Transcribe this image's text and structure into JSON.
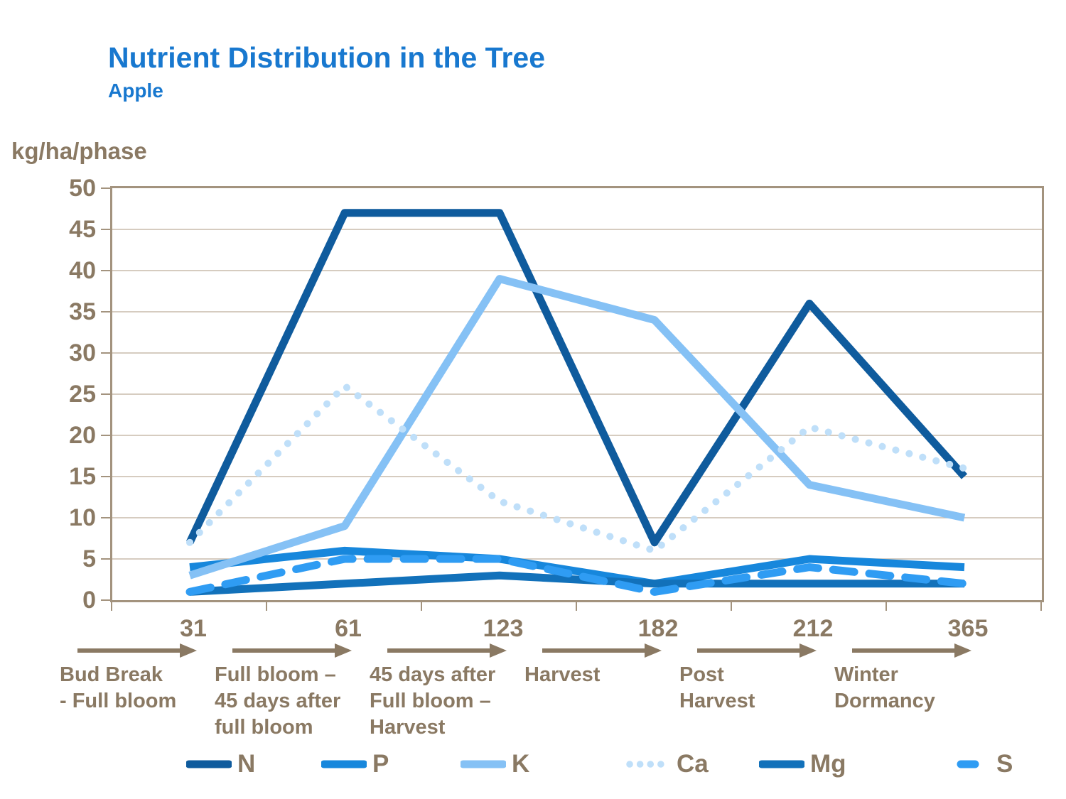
{
  "header": {
    "title": "Nutrient Distribution in the Tree",
    "subtitle": "Apple"
  },
  "colors": {
    "title_blue": "#1878CF",
    "axis_text_brown": "#8A7963",
    "grid": "#C8BCAC",
    "border": "#A3937E",
    "background": "#FFFFFF"
  },
  "chart_data": {
    "type": "line",
    "title": "Nutrient Distribution in the Tree",
    "subtitle": "Apple",
    "ylabel": "kg/ha/phase",
    "xlabel": "",
    "ylim": [
      0,
      50
    ],
    "ytick_step": 5,
    "yticks": [
      "0",
      "5",
      "10",
      "15",
      "20",
      "25",
      "30",
      "35",
      "40",
      "45",
      "50"
    ],
    "grid": true,
    "legend_position": "bottom",
    "categories": [
      "31",
      "61",
      "123",
      "182",
      "212",
      "365"
    ],
    "phases": [
      {
        "day": "31",
        "label": "Bud Break\n- Full bloom"
      },
      {
        "day": "61",
        "label": "Full bloom –\n45 days after\nfull bloom"
      },
      {
        "day": "123",
        "label": "45 days after\nFull bloom –\nHarvest"
      },
      {
        "day": "182",
        "label": "Harvest"
      },
      {
        "day": "212",
        "label": "Post\nHarvest"
      },
      {
        "day": "365",
        "label": "Winter\nDormancy"
      }
    ],
    "series": [
      {
        "name": "N",
        "style": "solid",
        "color": "#0F5B9D",
        "values": [
          7,
          47,
          47,
          7,
          36,
          15
        ]
      },
      {
        "name": "P",
        "style": "solid",
        "color": "#1787DC",
        "values": [
          4,
          6,
          5,
          2,
          5,
          4
        ]
      },
      {
        "name": "K",
        "style": "solid",
        "color": "#85C1F5",
        "values": [
          3,
          9,
          39,
          34,
          14,
          10
        ]
      },
      {
        "name": "Ca",
        "style": "dotted",
        "color": "#BFDFF9",
        "values": [
          7,
          26,
          12,
          6,
          21,
          16
        ]
      },
      {
        "name": "Mg",
        "style": "solid",
        "color": "#1271BA",
        "values": [
          1,
          2,
          3,
          2,
          2,
          2
        ]
      },
      {
        "name": "S",
        "style": "dashed",
        "color": "#2F9CF3",
        "values": [
          1,
          5,
          5,
          1,
          4,
          2
        ]
      }
    ]
  }
}
